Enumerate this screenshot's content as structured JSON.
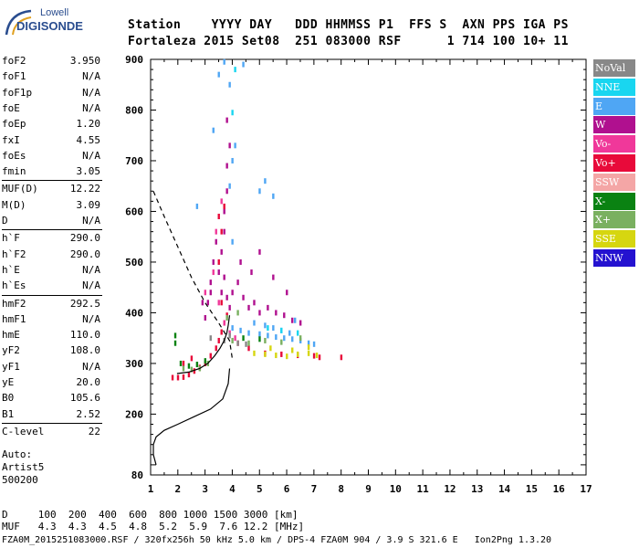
{
  "logo": {
    "top": "Lowell",
    "bottom": "DIGISONDE"
  },
  "header": {
    "labels": "Station    YYYY DAY   DDD HHMMSS P1  FFS S  AXN PPS IGA PS",
    "values": "Fortaleza 2015 Set08  251 083000 RSF      1 714 100 10+ 11"
  },
  "params": [
    {
      "name": "foF2",
      "value": "3.950"
    },
    {
      "name": "foF1",
      "value": "N/A"
    },
    {
      "name": "foF1p",
      "value": "N/A"
    },
    {
      "name": "foE",
      "value": "N/A"
    },
    {
      "name": "foEp",
      "value": "1.20"
    },
    {
      "name": "fxI",
      "value": "4.55"
    },
    {
      "name": "foEs",
      "value": "N/A"
    },
    {
      "name": "fmin",
      "value": "3.05"
    },
    {
      "name": "MUF(D)",
      "value": "12.22"
    },
    {
      "name": "M(D)",
      "value": "3.09"
    },
    {
      "name": "D",
      "value": "N/A"
    },
    {
      "name": "h`F",
      "value": "290.0"
    },
    {
      "name": "h`F2",
      "value": "290.0"
    },
    {
      "name": "h`E",
      "value": "N/A"
    },
    {
      "name": "h`Es",
      "value": "N/A"
    },
    {
      "name": "hmF2",
      "value": "292.5"
    },
    {
      "name": "hmF1",
      "value": "N/A"
    },
    {
      "name": "hmE",
      "value": "110.0"
    },
    {
      "name": "yF2",
      "value": "108.0"
    },
    {
      "name": "yF1",
      "value": "N/A"
    },
    {
      "name": "yE",
      "value": "20.0"
    },
    {
      "name": "B0",
      "value": "105.6"
    },
    {
      "name": "B1",
      "value": "2.52"
    },
    {
      "name": "C-level",
      "value": "22"
    }
  ],
  "auto": [
    "Auto:",
    "Artist5",
    "500200"
  ],
  "legend": [
    {
      "label": "NoVal",
      "color": "#888888"
    },
    {
      "label": "NNE",
      "color": "#19d6f0"
    },
    {
      "label": "E",
      "color": "#4fa6f4"
    },
    {
      "label": "W",
      "color": "#b0108f"
    },
    {
      "label": "Vo-",
      "color": "#f0389a"
    },
    {
      "label": "Vo+",
      "color": "#e80a3a"
    },
    {
      "label": "SSW",
      "color": "#f4a6a6"
    },
    {
      "label": "X-",
      "color": "#0a8212"
    },
    {
      "label": "X+",
      "color": "#7ab060"
    },
    {
      "label": "SSE",
      "color": "#d6d610"
    },
    {
      "label": "NNW",
      "color": "#2412d0"
    }
  ],
  "bottom": {
    "d_row": "D     100  200  400  600  800 1000 1500 3000 [km]",
    "muf_row": "MUF   4.3  4.3  4.5  4.8  5.2  5.9  7.6 12.2 [MHz]",
    "footer": "FZA0M_2015251083000.RSF / 320fx256h 50 kHz 5.0 km / DPS-4 FZA0M 904 / 3.9 S 321.6 E   Ion2Png 1.3.20"
  },
  "chart_data": {
    "type": "scatter",
    "title": "",
    "xlabel": "",
    "ylabel": "",
    "xlim": [
      1,
      17
    ],
    "ylim": [
      80,
      900
    ],
    "xticks": [
      1,
      2,
      3,
      4,
      5,
      6,
      7,
      8,
      9,
      10,
      11,
      12,
      13,
      14,
      15,
      16,
      17
    ],
    "yticks": [
      80,
      200,
      300,
      400,
      500,
      600,
      700,
      800,
      900
    ],
    "x_minor_step": 0.5,
    "grid": false,
    "legend_position": "right",
    "series": [
      {
        "name": "W",
        "color": "#b0108f",
        "points": [
          [
            3.0,
            390
          ],
          [
            3.1,
            420
          ],
          [
            3.2,
            460
          ],
          [
            3.3,
            500
          ],
          [
            3.4,
            540
          ],
          [
            3.5,
            480
          ],
          [
            3.6,
            440
          ],
          [
            3.7,
            470
          ],
          [
            3.8,
            430
          ],
          [
            3.9,
            410
          ],
          [
            4.0,
            440
          ],
          [
            4.2,
            460
          ],
          [
            4.4,
            430
          ],
          [
            4.6,
            410
          ],
          [
            4.8,
            420
          ],
          [
            5.0,
            400
          ],
          [
            5.3,
            410
          ],
          [
            5.6,
            400
          ],
          [
            5.9,
            395
          ],
          [
            6.2,
            385
          ],
          [
            6.5,
            380
          ],
          [
            3.6,
            520
          ],
          [
            3.7,
            560
          ],
          [
            3.8,
            640
          ],
          [
            3.8,
            690
          ],
          [
            3.9,
            730
          ],
          [
            3.8,
            780
          ],
          [
            3.7,
            600
          ],
          [
            2.9,
            420
          ],
          [
            3.2,
            440
          ],
          [
            5.0,
            520
          ],
          [
            5.5,
            470
          ],
          [
            6.0,
            440
          ],
          [
            4.3,
            500
          ],
          [
            4.7,
            480
          ]
        ]
      },
      {
        "name": "Vo+",
        "color": "#e80a3a",
        "points": [
          [
            1.8,
            272
          ],
          [
            2.0,
            272
          ],
          [
            2.2,
            273
          ],
          [
            2.4,
            278
          ],
          [
            2.6,
            285
          ],
          [
            2.8,
            292
          ],
          [
            3.0,
            300
          ],
          [
            3.2,
            315
          ],
          [
            3.4,
            330
          ],
          [
            3.5,
            345
          ],
          [
            3.6,
            362
          ],
          [
            3.7,
            380
          ],
          [
            3.8,
            395
          ],
          [
            3.6,
            420
          ],
          [
            3.5,
            500
          ],
          [
            3.6,
            560
          ],
          [
            3.7,
            610
          ],
          [
            3.5,
            590
          ],
          [
            4.2,
            340
          ],
          [
            4.6,
            330
          ],
          [
            5.2,
            320
          ],
          [
            5.8,
            318
          ],
          [
            6.4,
            316
          ],
          [
            7.0,
            315
          ],
          [
            7.2,
            312
          ],
          [
            8.0,
            312
          ],
          [
            2.2,
            300
          ],
          [
            2.5,
            310
          ]
        ]
      },
      {
        "name": "E",
        "color": "#4fa6f4",
        "points": [
          [
            4.0,
            370
          ],
          [
            4.3,
            365
          ],
          [
            4.6,
            360
          ],
          [
            5.0,
            358
          ],
          [
            5.3,
            355
          ],
          [
            5.6,
            352
          ],
          [
            5.9,
            350
          ],
          [
            6.2,
            348
          ],
          [
            6.5,
            345
          ],
          [
            6.8,
            340
          ],
          [
            7.0,
            338
          ],
          [
            4.8,
            380
          ],
          [
            5.2,
            375
          ],
          [
            5.5,
            370
          ],
          [
            5.8,
            365
          ],
          [
            6.1,
            360
          ],
          [
            3.9,
            650
          ],
          [
            4.0,
            700
          ],
          [
            4.1,
            730
          ],
          [
            5.0,
            640
          ],
          [
            5.2,
            660
          ],
          [
            5.5,
            630
          ],
          [
            3.3,
            760
          ],
          [
            3.5,
            870
          ],
          [
            3.7,
            895
          ],
          [
            3.9,
            850
          ],
          [
            4.4,
            890
          ],
          [
            4.0,
            540
          ],
          [
            2.7,
            610
          ],
          [
            6.3,
            385
          ]
        ]
      },
      {
        "name": "SSE",
        "color": "#d6d610",
        "points": [
          [
            4.8,
            320
          ],
          [
            5.2,
            318
          ],
          [
            5.6,
            316
          ],
          [
            6.0,
            314
          ],
          [
            6.4,
            318
          ],
          [
            6.8,
            320
          ],
          [
            7.1,
            316
          ],
          [
            5.4,
            330
          ],
          [
            6.2,
            326
          ],
          [
            6.8,
            332
          ]
        ]
      },
      {
        "name": "X+",
        "color": "#7ab060",
        "points": [
          [
            2.2,
            290
          ],
          [
            2.5,
            288
          ],
          [
            2.8,
            290
          ],
          [
            3.1,
            300
          ],
          [
            4.0,
            345
          ],
          [
            4.6,
            340
          ],
          [
            5.2,
            345
          ],
          [
            5.8,
            342
          ],
          [
            6.5,
            350
          ],
          [
            3.8,
            390
          ],
          [
            4.2,
            400
          ]
        ]
      },
      {
        "name": "X-",
        "color": "#0a8212",
        "points": [
          [
            1.9,
            355
          ],
          [
            1.9,
            340
          ],
          [
            2.1,
            300
          ],
          [
            2.4,
            295
          ],
          [
            2.7,
            298
          ],
          [
            3.0,
            305
          ],
          [
            4.4,
            350
          ],
          [
            5.0,
            348
          ]
        ]
      },
      {
        "name": "NNE",
        "color": "#19d6f0",
        "points": [
          [
            5.3,
            370
          ],
          [
            5.8,
            365
          ],
          [
            6.4,
            360
          ],
          [
            4.0,
            795
          ],
          [
            4.1,
            880
          ]
        ]
      },
      {
        "name": "Vo-",
        "color": "#f0389a",
        "points": [
          [
            3.0,
            440
          ],
          [
            3.3,
            480
          ],
          [
            3.5,
            420
          ],
          [
            3.7,
            380
          ],
          [
            3.9,
            360
          ],
          [
            4.1,
            350
          ],
          [
            3.4,
            560
          ],
          [
            3.6,
            620
          ]
        ]
      },
      {
        "name": "NoVal",
        "color": "#888888",
        "points": [
          [
            3.7,
            345
          ],
          [
            3.9,
            355
          ],
          [
            4.2,
            340
          ],
          [
            4.5,
            338
          ],
          [
            3.2,
            350
          ]
        ]
      }
    ],
    "profile_solid": [
      [
        1.97,
        280
      ],
      [
        2.4,
        283
      ],
      [
        2.8,
        290
      ],
      [
        3.1,
        300
      ],
      [
        3.35,
        315
      ],
      [
        3.55,
        330
      ],
      [
        3.7,
        345
      ],
      [
        3.8,
        360
      ],
      [
        3.85,
        375
      ],
      [
        3.9,
        395
      ]
    ],
    "profile_under": [
      [
        3.9,
        290
      ],
      [
        3.85,
        260
      ],
      [
        3.65,
        230
      ],
      [
        3.2,
        210
      ],
      [
        2.6,
        195
      ],
      [
        2.0,
        180
      ],
      [
        1.5,
        168
      ],
      [
        1.2,
        155
      ],
      [
        1.1,
        140
      ],
      [
        1.1,
        120
      ],
      [
        1.2,
        100
      ]
    ],
    "profile_top": [
      [
        1.1,
        640
      ],
      [
        1.5,
        590
      ],
      [
        2.0,
        530
      ],
      [
        2.5,
        470
      ],
      [
        3.0,
        420
      ],
      [
        3.5,
        380
      ],
      [
        3.9,
        345
      ],
      [
        4.0,
        310
      ]
    ]
  }
}
